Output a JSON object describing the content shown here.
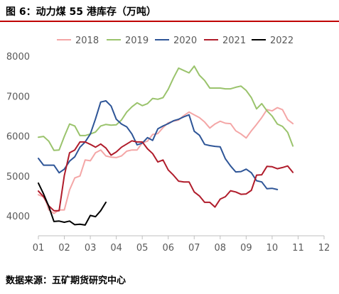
{
  "header": {
    "title": "图 6：动力煤 55 港库存（万吨）"
  },
  "footer": {
    "source": "数据来源：五矿期货研究中心"
  },
  "chart_data": {
    "type": "line",
    "title": "图 6：动力煤 55 港库存（万吨）",
    "xlabel": "",
    "ylabel": "",
    "ylim": [
      3500,
      8000
    ],
    "yticks": [
      4000,
      5000,
      6000,
      7000,
      8000
    ],
    "xlim": [
      1,
      12
    ],
    "xticks": [
      "01",
      "02",
      "03",
      "04",
      "05",
      "06",
      "07",
      "08",
      "09",
      "10",
      "11",
      "12"
    ],
    "grid": false,
    "legend_position": "top",
    "series": [
      {
        "name": "2018",
        "color": "#f4a6a6",
        "points": [
          [
            1.0,
            4530
          ],
          [
            1.25,
            4460
          ],
          [
            1.4,
            4150
          ],
          [
            1.6,
            4060
          ],
          [
            1.8,
            4150
          ],
          [
            2.0,
            4150
          ],
          [
            2.2,
            4650
          ],
          [
            2.4,
            4950
          ],
          [
            2.6,
            5000
          ],
          [
            2.8,
            5400
          ],
          [
            3.0,
            5380
          ],
          [
            3.2,
            5580
          ],
          [
            3.4,
            5650
          ],
          [
            3.6,
            5500
          ],
          [
            3.8,
            5470
          ],
          [
            4.0,
            5460
          ],
          [
            4.2,
            5500
          ],
          [
            4.4,
            5620
          ],
          [
            4.6,
            5650
          ],
          [
            4.8,
            5650
          ],
          [
            5.0,
            5830
          ],
          [
            5.2,
            5870
          ],
          [
            5.4,
            6040
          ],
          [
            5.6,
            6060
          ],
          [
            5.8,
            6210
          ],
          [
            6.0,
            6330
          ],
          [
            6.2,
            6370
          ],
          [
            6.4,
            6400
          ],
          [
            6.6,
            6510
          ],
          [
            6.8,
            6600
          ],
          [
            7.0,
            6530
          ],
          [
            7.2,
            6460
          ],
          [
            7.4,
            6350
          ],
          [
            7.6,
            6200
          ],
          [
            7.8,
            6300
          ],
          [
            8.0,
            6370
          ],
          [
            8.2,
            6320
          ],
          [
            8.4,
            6310
          ],
          [
            8.6,
            6130
          ],
          [
            8.8,
            6050
          ],
          [
            9.0,
            5950
          ],
          [
            9.2,
            6130
          ],
          [
            9.4,
            6290
          ],
          [
            9.6,
            6460
          ],
          [
            9.8,
            6660
          ],
          [
            10.0,
            6630
          ],
          [
            10.2,
            6710
          ],
          [
            10.4,
            6660
          ],
          [
            10.6,
            6410
          ],
          [
            10.8,
            6310
          ]
        ]
      },
      {
        "name": "2019",
        "color": "#9ac36c",
        "points": [
          [
            1.0,
            5970
          ],
          [
            1.2,
            5990
          ],
          [
            1.4,
            5870
          ],
          [
            1.6,
            5640
          ],
          [
            1.8,
            5650
          ],
          [
            2.0,
            5990
          ],
          [
            2.2,
            6300
          ],
          [
            2.4,
            6250
          ],
          [
            2.6,
            6010
          ],
          [
            2.8,
            6010
          ],
          [
            3.0,
            6050
          ],
          [
            3.2,
            6100
          ],
          [
            3.4,
            6250
          ],
          [
            3.6,
            6290
          ],
          [
            3.8,
            6270
          ],
          [
            4.0,
            6280
          ],
          [
            4.2,
            6400
          ],
          [
            4.4,
            6600
          ],
          [
            4.6,
            6730
          ],
          [
            4.8,
            6830
          ],
          [
            5.0,
            6760
          ],
          [
            5.2,
            6810
          ],
          [
            5.4,
            6940
          ],
          [
            5.6,
            6920
          ],
          [
            5.8,
            6960
          ],
          [
            6.0,
            7170
          ],
          [
            6.2,
            7450
          ],
          [
            6.4,
            7700
          ],
          [
            6.6,
            7640
          ],
          [
            6.8,
            7580
          ],
          [
            7.0,
            7750
          ],
          [
            7.2,
            7520
          ],
          [
            7.4,
            7390
          ],
          [
            7.6,
            7200
          ],
          [
            7.8,
            7200
          ],
          [
            8.0,
            7200
          ],
          [
            8.2,
            7180
          ],
          [
            8.4,
            7180
          ],
          [
            8.6,
            7220
          ],
          [
            8.8,
            7250
          ],
          [
            9.0,
            7140
          ],
          [
            9.2,
            6960
          ],
          [
            9.4,
            6680
          ],
          [
            9.6,
            6810
          ],
          [
            9.8,
            6630
          ],
          [
            10.0,
            6500
          ],
          [
            10.2,
            6300
          ],
          [
            10.4,
            6240
          ],
          [
            10.6,
            6090
          ],
          [
            10.8,
            5750
          ]
        ]
      },
      {
        "name": "2020",
        "color": "#2e5597",
        "points": [
          [
            1.0,
            5440
          ],
          [
            1.2,
            5270
          ],
          [
            1.4,
            5270
          ],
          [
            1.6,
            5270
          ],
          [
            1.8,
            5080
          ],
          [
            2.0,
            5170
          ],
          [
            2.2,
            5370
          ],
          [
            2.4,
            5480
          ],
          [
            2.6,
            5720
          ],
          [
            2.8,
            5850
          ],
          [
            3.0,
            6050
          ],
          [
            3.2,
            6430
          ],
          [
            3.4,
            6850
          ],
          [
            3.6,
            6880
          ],
          [
            3.8,
            6750
          ],
          [
            4.0,
            6420
          ],
          [
            4.2,
            6300
          ],
          [
            4.4,
            6230
          ],
          [
            4.6,
            6050
          ],
          [
            4.8,
            5780
          ],
          [
            5.0,
            5820
          ],
          [
            5.2,
            5960
          ],
          [
            5.4,
            5890
          ],
          [
            5.6,
            6180
          ],
          [
            5.8,
            6250
          ],
          [
            6.0,
            6310
          ],
          [
            6.2,
            6380
          ],
          [
            6.4,
            6420
          ],
          [
            6.6,
            6480
          ],
          [
            6.8,
            6530
          ],
          [
            7.0,
            6120
          ],
          [
            7.2,
            6020
          ],
          [
            7.4,
            5790
          ],
          [
            7.6,
            5760
          ],
          [
            7.8,
            5740
          ],
          [
            8.0,
            5730
          ],
          [
            8.2,
            5430
          ],
          [
            8.4,
            5250
          ],
          [
            8.6,
            5100
          ],
          [
            8.8,
            5110
          ],
          [
            9.0,
            5170
          ],
          [
            9.2,
            5080
          ],
          [
            9.4,
            4880
          ],
          [
            9.6,
            4850
          ],
          [
            9.8,
            4680
          ],
          [
            10.0,
            4690
          ],
          [
            10.2,
            4660
          ]
        ]
      },
      {
        "name": "2021",
        "color": "#b01c2b",
        "points": [
          [
            1.0,
            4620
          ],
          [
            1.2,
            4480
          ],
          [
            1.4,
            4250
          ],
          [
            1.6,
            4130
          ],
          [
            1.8,
            4130
          ],
          [
            2.0,
            5010
          ],
          [
            2.2,
            5580
          ],
          [
            2.4,
            5650
          ],
          [
            2.6,
            5850
          ],
          [
            2.8,
            5850
          ],
          [
            3.0,
            5790
          ],
          [
            3.2,
            5720
          ],
          [
            3.4,
            5800
          ],
          [
            3.6,
            5700
          ],
          [
            3.8,
            5520
          ],
          [
            4.0,
            5600
          ],
          [
            4.2,
            5720
          ],
          [
            4.4,
            5800
          ],
          [
            4.6,
            5880
          ],
          [
            4.8,
            5850
          ],
          [
            5.0,
            5850
          ],
          [
            5.2,
            5680
          ],
          [
            5.4,
            5560
          ],
          [
            5.6,
            5350
          ],
          [
            5.8,
            5400
          ],
          [
            6.0,
            5150
          ],
          [
            6.2,
            5020
          ],
          [
            6.4,
            4870
          ],
          [
            6.6,
            4850
          ],
          [
            6.8,
            4850
          ],
          [
            7.0,
            4600
          ],
          [
            7.2,
            4500
          ],
          [
            7.4,
            4340
          ],
          [
            7.6,
            4340
          ],
          [
            7.8,
            4220
          ],
          [
            8.0,
            4420
          ],
          [
            8.2,
            4480
          ],
          [
            8.4,
            4630
          ],
          [
            8.6,
            4600
          ],
          [
            8.8,
            4540
          ],
          [
            9.0,
            4550
          ],
          [
            9.2,
            4640
          ],
          [
            9.4,
            5020
          ],
          [
            9.6,
            5030
          ],
          [
            9.8,
            5240
          ],
          [
            10.0,
            5230
          ],
          [
            10.2,
            5180
          ],
          [
            10.4,
            5210
          ],
          [
            10.6,
            5250
          ],
          [
            10.8,
            5090
          ]
        ]
      },
      {
        "name": "2022",
        "color": "#000000",
        "points": [
          [
            1.0,
            4820
          ],
          [
            1.2,
            4550
          ],
          [
            1.4,
            4240
          ],
          [
            1.6,
            3860
          ],
          [
            1.8,
            3870
          ],
          [
            2.0,
            3840
          ],
          [
            2.2,
            3870
          ],
          [
            2.4,
            3780
          ],
          [
            2.6,
            3790
          ],
          [
            2.8,
            3770
          ],
          [
            3.0,
            4010
          ],
          [
            3.2,
            3980
          ],
          [
            3.4,
            4130
          ],
          [
            3.6,
            4340
          ]
        ]
      }
    ]
  }
}
